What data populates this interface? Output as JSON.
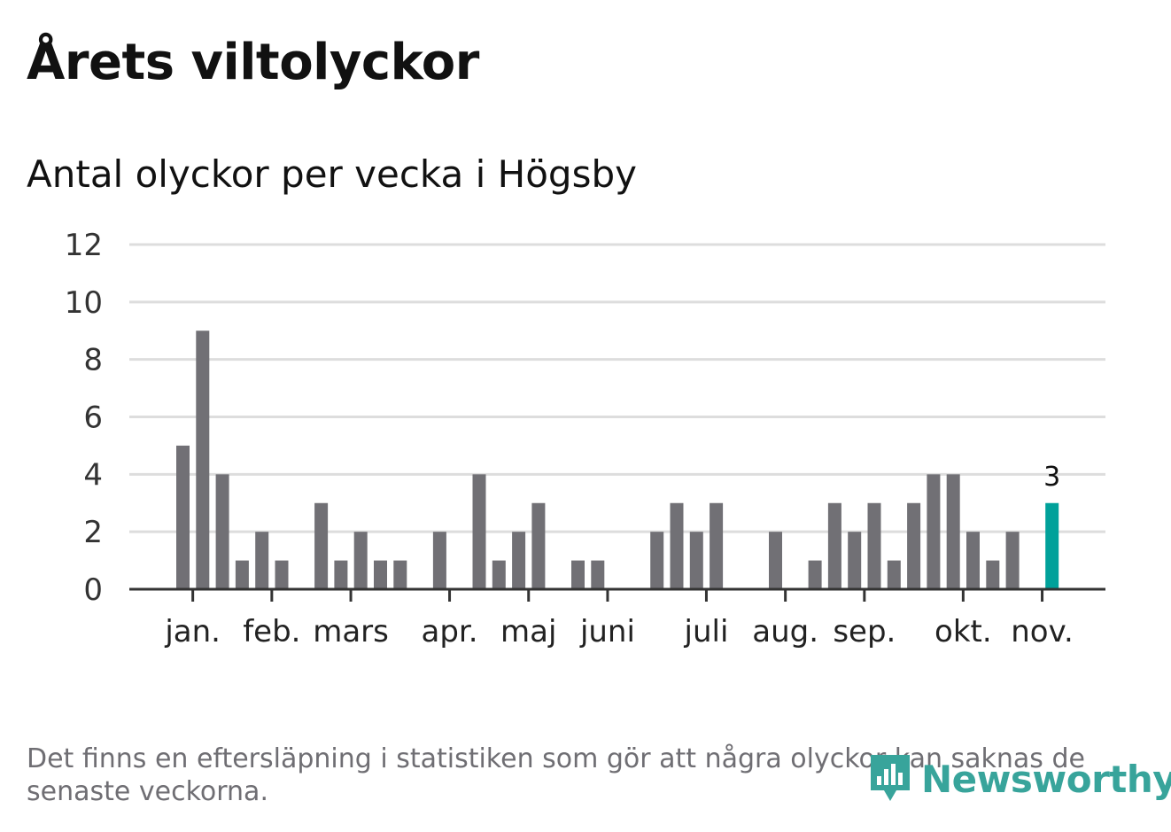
{
  "title": "Årets viltolyckor",
  "subtitle": "Antal olyckor per vecka i Högsby",
  "footnote": "Det finns en eftersläpning i statistiken som gör att några olyckor kan saknas de senaste veckorna.",
  "logo_text": "Newsworthy",
  "colors": {
    "bar": "#717075",
    "highlight": "#00a19a",
    "grid": "#dddddd",
    "axis": "#333333",
    "logo": "#38a49b"
  },
  "chart_data": {
    "type": "bar",
    "x": [
      1,
      2,
      3,
      4,
      5,
      6,
      7,
      8,
      9,
      10,
      11,
      12,
      13,
      14,
      15,
      16,
      17,
      18,
      19,
      20,
      21,
      22,
      23,
      24,
      25,
      26,
      27,
      28,
      29,
      30,
      31,
      32,
      33,
      34,
      35,
      36,
      37,
      38,
      39,
      40,
      41,
      42,
      43,
      44,
      45,
      46
    ],
    "values": [
      5,
      9,
      4,
      1,
      2,
      1,
      0,
      3,
      1,
      2,
      1,
      1,
      0,
      2,
      0,
      4,
      1,
      2,
      3,
      0,
      1,
      1,
      0,
      0,
      2,
      3,
      2,
      3,
      0,
      0,
      2,
      0,
      1,
      3,
      2,
      3,
      1,
      3,
      4,
      4,
      2,
      1,
      2,
      0,
      3,
      null
    ],
    "highlight_index": 44,
    "highlight_label": "3",
    "ylim": [
      0,
      12
    ],
    "yticks": [
      0,
      2,
      4,
      6,
      8,
      10,
      12
    ],
    "month_ticks": [
      {
        "label": "jan.",
        "pos": 1.5
      },
      {
        "label": "feb.",
        "pos": 5.5
      },
      {
        "label": "mars",
        "pos": 9.5
      },
      {
        "label": "apr.",
        "pos": 14.5
      },
      {
        "label": "maj",
        "pos": 18.5
      },
      {
        "label": "juni",
        "pos": 22.5
      },
      {
        "label": "juli",
        "pos": 27.5
      },
      {
        "label": "aug.",
        "pos": 31.5
      },
      {
        "label": "sep.",
        "pos": 35.5
      },
      {
        "label": "okt.",
        "pos": 40.5
      },
      {
        "label": "nov.",
        "pos": 44.5
      }
    ],
    "grid": true,
    "xlabel": "",
    "ylabel": ""
  }
}
